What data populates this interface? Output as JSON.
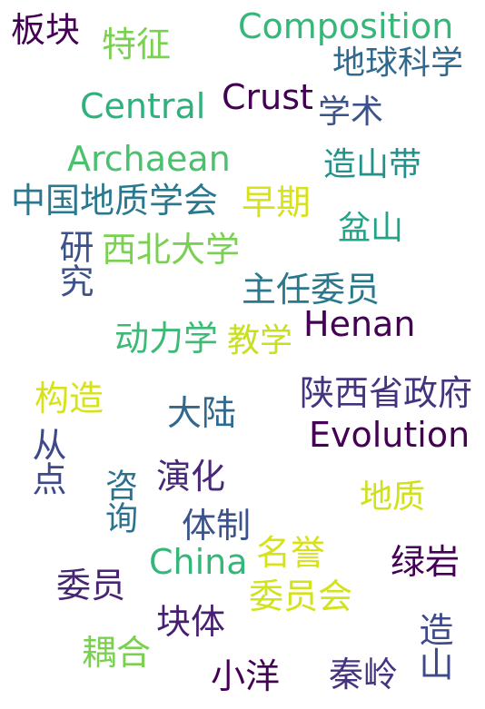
{
  "words": [
    {
      "text": "板块",
      "color": "#440154"
    },
    {
      "text": "特征",
      "color": "#7ad151"
    },
    {
      "text": "Composition",
      "color": "#35b779"
    },
    {
      "text": "地球科学",
      "color": "#31688e"
    },
    {
      "text": "Central",
      "color": "#2db27d"
    },
    {
      "text": "Crust",
      "color": "#440154"
    },
    {
      "text": "学术",
      "color": "#3b528b"
    },
    {
      "text": "Archaean",
      "color": "#4ac16d"
    },
    {
      "text": "造山带",
      "color": "#21918c"
    },
    {
      "text": "中国地质学会",
      "color": "#2a788e"
    },
    {
      "text": "早期",
      "color": "#d8e219"
    },
    {
      "text": "盆山",
      "color": "#20a386"
    },
    {
      "text": "研究",
      "color": "#3b528b"
    },
    {
      "text": "西北大学",
      "color": "#7ad151"
    },
    {
      "text": "主任委员",
      "color": "#2a788e"
    },
    {
      "text": "动力学",
      "color": "#3bbb75"
    },
    {
      "text": "教学",
      "color": "#c8e020"
    },
    {
      "text": "Henan",
      "color": "#440154"
    },
    {
      "text": "构造",
      "color": "#d8e219"
    },
    {
      "text": "陕西省政府",
      "color": "#46337f"
    },
    {
      "text": "大陆",
      "color": "#31688e"
    },
    {
      "text": "Evolution",
      "color": "#440154"
    },
    {
      "text": "从点",
      "color": "#3e4989"
    },
    {
      "text": "演化",
      "color": "#482878"
    },
    {
      "text": "咨询",
      "color": "#2c728e"
    },
    {
      "text": "地质",
      "color": "#d0e11c"
    },
    {
      "text": "体制",
      "color": "#3b528b"
    },
    {
      "text": "China",
      "color": "#35b779"
    },
    {
      "text": "名誉",
      "color": "#d8e219"
    },
    {
      "text": "绿岩",
      "color": "#440154"
    },
    {
      "text": "委员",
      "color": "#482475"
    },
    {
      "text": "委员会",
      "color": "#d2e21b"
    },
    {
      "text": "块体",
      "color": "#481f70"
    },
    {
      "text": "造山",
      "color": "#3e4989"
    },
    {
      "text": "耦合",
      "color": "#7ad151"
    },
    {
      "text": "小洋",
      "color": "#440154"
    },
    {
      "text": "秦岭",
      "color": "#46337f"
    }
  ]
}
